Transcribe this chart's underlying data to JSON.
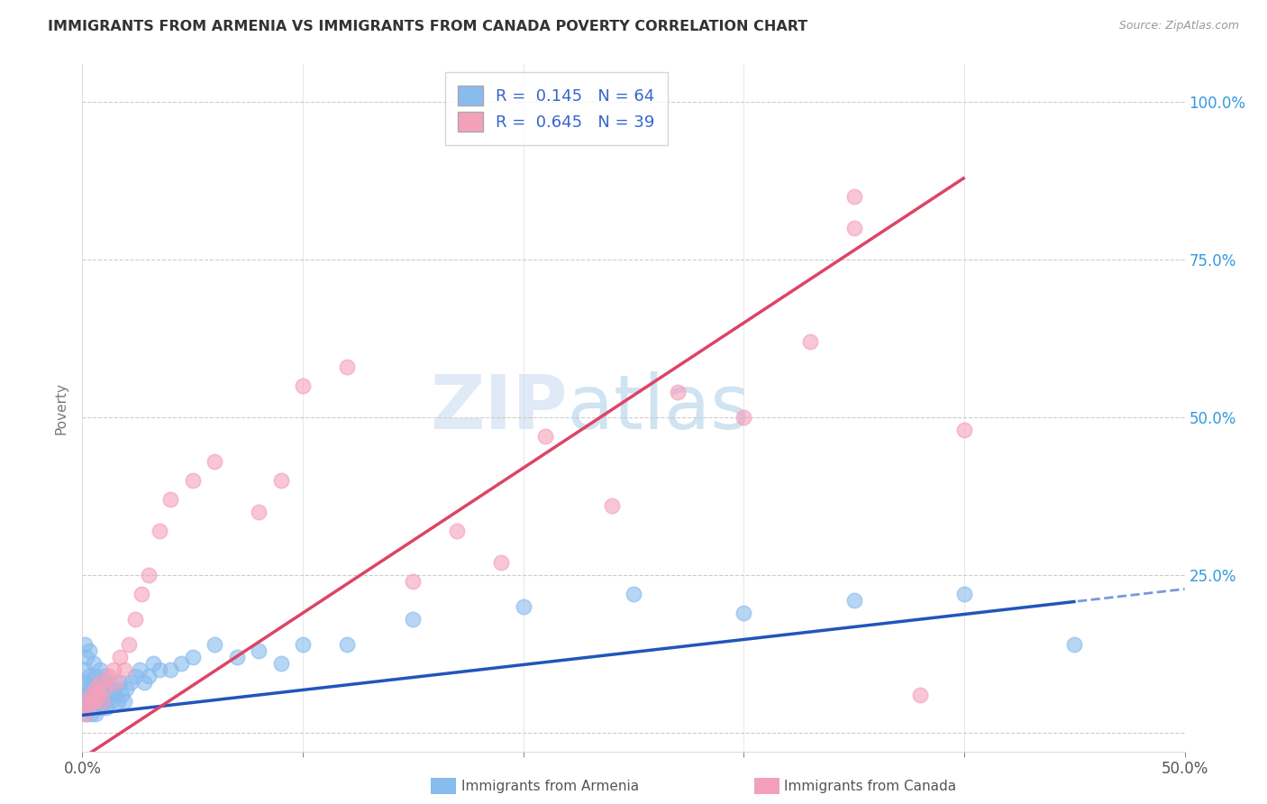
{
  "title": "IMMIGRANTS FROM ARMENIA VS IMMIGRANTS FROM CANADA POVERTY CORRELATION CHART",
  "source": "Source: ZipAtlas.com",
  "ylabel": "Poverty",
  "watermark_zip": "ZIP",
  "watermark_atlas": "atlas",
  "armenia_R": 0.145,
  "armenia_N": 64,
  "canada_R": 0.645,
  "canada_N": 39,
  "armenia_color": "#88BBEE",
  "canada_color": "#F5A0BB",
  "armenia_line_color": "#2255BB",
  "canada_line_color": "#DD4466",
  "legend_label_armenia": "Immigrants from Armenia",
  "legend_label_canada": "Immigrants from Canada",
  "xmin": 0.0,
  "xmax": 0.5,
  "ymin": -0.03,
  "ymax": 1.06,
  "armenia_line_intercept": 0.028,
  "armenia_line_slope": 0.4,
  "canada_line_intercept": -0.04,
  "canada_line_slope": 2.3,
  "armenia_x": [
    0.001,
    0.001,
    0.001,
    0.001,
    0.001,
    0.002,
    0.002,
    0.002,
    0.002,
    0.003,
    0.003,
    0.003,
    0.003,
    0.004,
    0.004,
    0.004,
    0.005,
    0.005,
    0.005,
    0.006,
    0.006,
    0.006,
    0.007,
    0.007,
    0.008,
    0.008,
    0.009,
    0.009,
    0.01,
    0.01,
    0.011,
    0.011,
    0.012,
    0.013,
    0.014,
    0.015,
    0.016,
    0.017,
    0.018,
    0.019,
    0.02,
    0.022,
    0.024,
    0.026,
    0.028,
    0.03,
    0.032,
    0.035,
    0.04,
    0.045,
    0.05,
    0.06,
    0.07,
    0.08,
    0.09,
    0.1,
    0.12,
    0.15,
    0.2,
    0.25,
    0.3,
    0.35,
    0.4,
    0.45
  ],
  "armenia_y": [
    0.04,
    0.06,
    0.08,
    0.1,
    0.14,
    0.03,
    0.05,
    0.07,
    0.12,
    0.04,
    0.06,
    0.09,
    0.13,
    0.03,
    0.05,
    0.08,
    0.04,
    0.07,
    0.11,
    0.03,
    0.06,
    0.09,
    0.04,
    0.08,
    0.05,
    0.1,
    0.04,
    0.07,
    0.05,
    0.09,
    0.04,
    0.08,
    0.06,
    0.05,
    0.07,
    0.06,
    0.05,
    0.08,
    0.06,
    0.05,
    0.07,
    0.08,
    0.09,
    0.1,
    0.08,
    0.09,
    0.11,
    0.1,
    0.1,
    0.11,
    0.12,
    0.14,
    0.12,
    0.13,
    0.11,
    0.14,
    0.14,
    0.18,
    0.2,
    0.22,
    0.19,
    0.21,
    0.22,
    0.14
  ],
  "canada_x": [
    0.001,
    0.002,
    0.003,
    0.004,
    0.005,
    0.006,
    0.007,
    0.008,
    0.009,
    0.01,
    0.012,
    0.014,
    0.015,
    0.017,
    0.019,
    0.021,
    0.024,
    0.027,
    0.03,
    0.035,
    0.04,
    0.05,
    0.06,
    0.08,
    0.09,
    0.1,
    0.12,
    0.15,
    0.17,
    0.19,
    0.21,
    0.24,
    0.27,
    0.3,
    0.33,
    0.35,
    0.38,
    0.35,
    0.4
  ],
  "canada_y": [
    0.03,
    0.05,
    0.04,
    0.06,
    0.05,
    0.07,
    0.06,
    0.08,
    0.05,
    0.07,
    0.09,
    0.1,
    0.08,
    0.12,
    0.1,
    0.14,
    0.18,
    0.22,
    0.25,
    0.32,
    0.37,
    0.4,
    0.43,
    0.35,
    0.4,
    0.55,
    0.58,
    0.24,
    0.32,
    0.27,
    0.47,
    0.36,
    0.54,
    0.5,
    0.62,
    0.8,
    0.06,
    0.85,
    0.48
  ]
}
